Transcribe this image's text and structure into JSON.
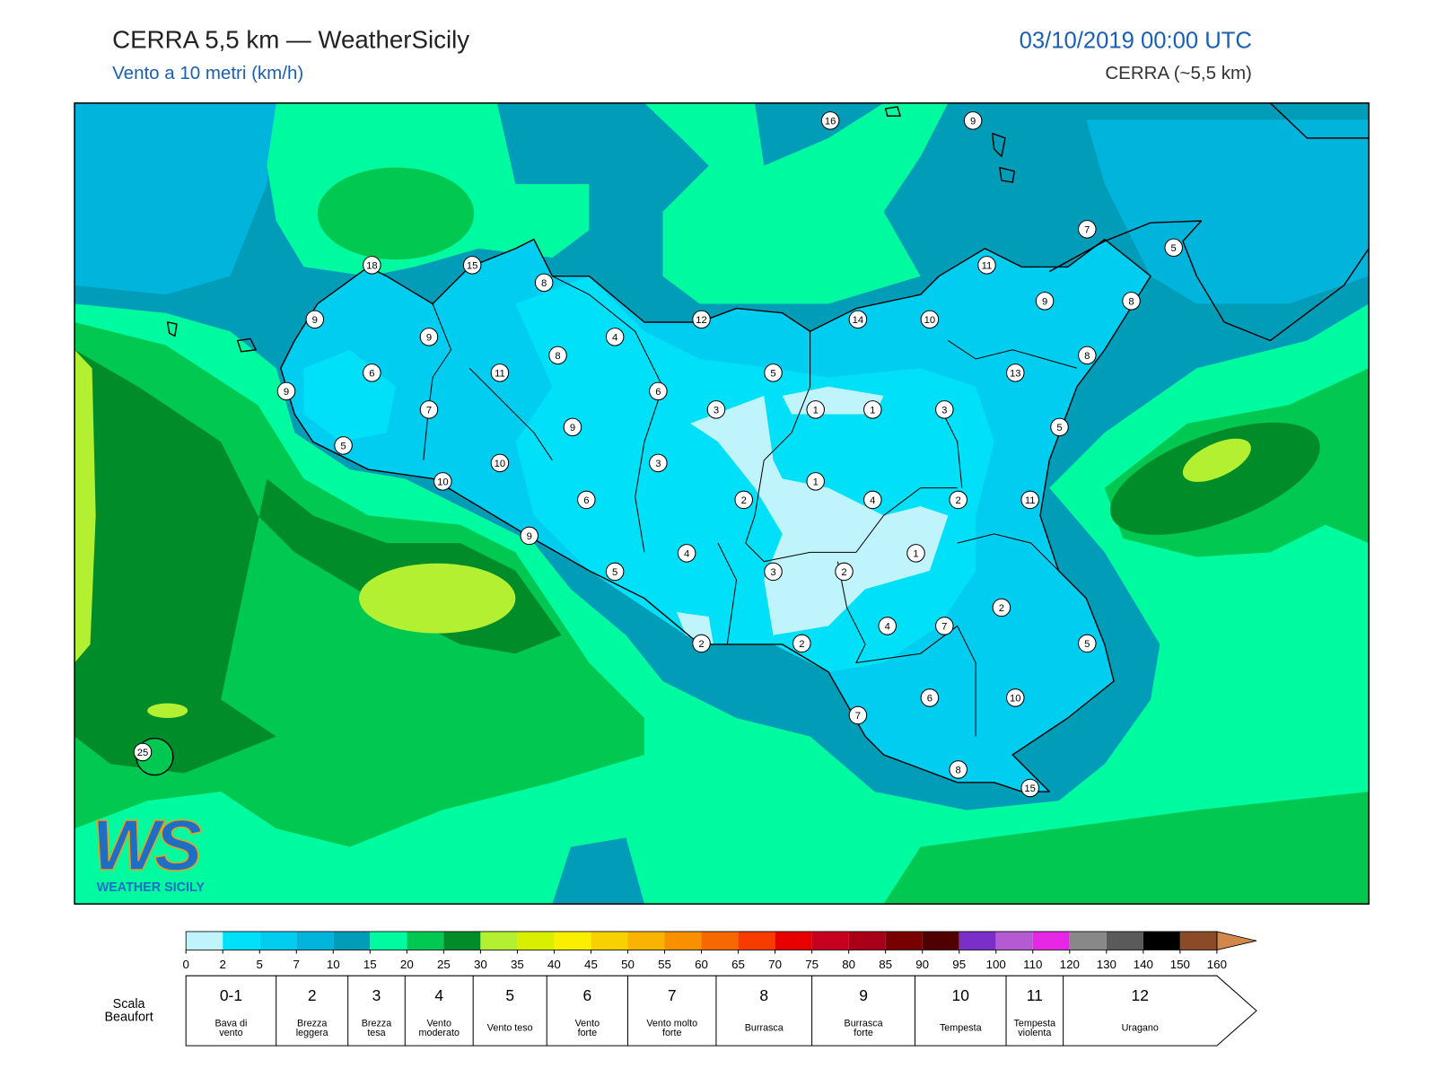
{
  "header": {
    "title": "CERRA 5,5 km — WeatherSicily",
    "subtitle": "Vento a 10 metri (km/h)",
    "date": "03/10/2019 00:00 UTC",
    "model": "CERRA (~5,5 km)"
  },
  "logo": {
    "letters": "WS",
    "name": "WEATHER SICILY"
  },
  "station_values": [
    16,
    9,
    7,
    5,
    18,
    15,
    11,
    8,
    9,
    8,
    9,
    12,
    14,
    10,
    9,
    4,
    8,
    8,
    6,
    11,
    5,
    13,
    9,
    6,
    7,
    3,
    1,
    1,
    3,
    9,
    5,
    5,
    10,
    3,
    10,
    1,
    6,
    2,
    4,
    2,
    11,
    9,
    4,
    1,
    5,
    3,
    2,
    2,
    4,
    7,
    2,
    2,
    5,
    6,
    10,
    7,
    8,
    15,
    25
  ],
  "colorbar": {
    "ticks": [
      0,
      2,
      5,
      7,
      10,
      15,
      20,
      25,
      30,
      35,
      40,
      45,
      50,
      55,
      60,
      65,
      70,
      75,
      80,
      85,
      90,
      95,
      100,
      110,
      120,
      130,
      140,
      150,
      160
    ],
    "colors": [
      "#c0f4fc",
      "#00e0f8",
      "#00cdf0",
      "#00b4dc",
      "#009cb8",
      "#00faa0",
      "#00c850",
      "#008c28",
      "#b4f032",
      "#d8f000",
      "#f8f000",
      "#f8d200",
      "#f8b400",
      "#f89000",
      "#f86800",
      "#f83c00",
      "#e80000",
      "#c80020",
      "#a80018",
      "#780000",
      "#500000",
      "#7a30c8",
      "#b45ad2",
      "#e628e6",
      "#888888",
      "#5a5a5a",
      "#000000",
      "#8b4a28",
      "#d2874b"
    ]
  },
  "beaufort": {
    "label_lines": [
      "Scala",
      "Beaufort"
    ],
    "levels": [
      {
        "scale": "0-1",
        "lines": [
          "Bava di",
          "vento"
        ]
      },
      {
        "scale": 2,
        "lines": [
          "Brezza",
          "leggera"
        ]
      },
      {
        "scale": 3,
        "lines": [
          "Brezza",
          "tesa"
        ]
      },
      {
        "scale": 4,
        "lines": [
          "Vento",
          "moderato"
        ]
      },
      {
        "scale": 5,
        "lines": [
          "Vento teso"
        ]
      },
      {
        "scale": 6,
        "lines": [
          "Vento",
          "forte"
        ]
      },
      {
        "scale": 7,
        "lines": [
          "Vento molto",
          "forte"
        ]
      },
      {
        "scale": 8,
        "lines": [
          "Burrasca"
        ]
      },
      {
        "scale": 9,
        "lines": [
          "Burrasca",
          "forte"
        ]
      },
      {
        "scale": 10,
        "lines": [
          "Tempesta"
        ]
      },
      {
        "scale": 11,
        "lines": [
          "Tempesta",
          "violenta"
        ]
      },
      {
        "scale": 12,
        "lines": [
          "Uragano"
        ]
      }
    ]
  }
}
